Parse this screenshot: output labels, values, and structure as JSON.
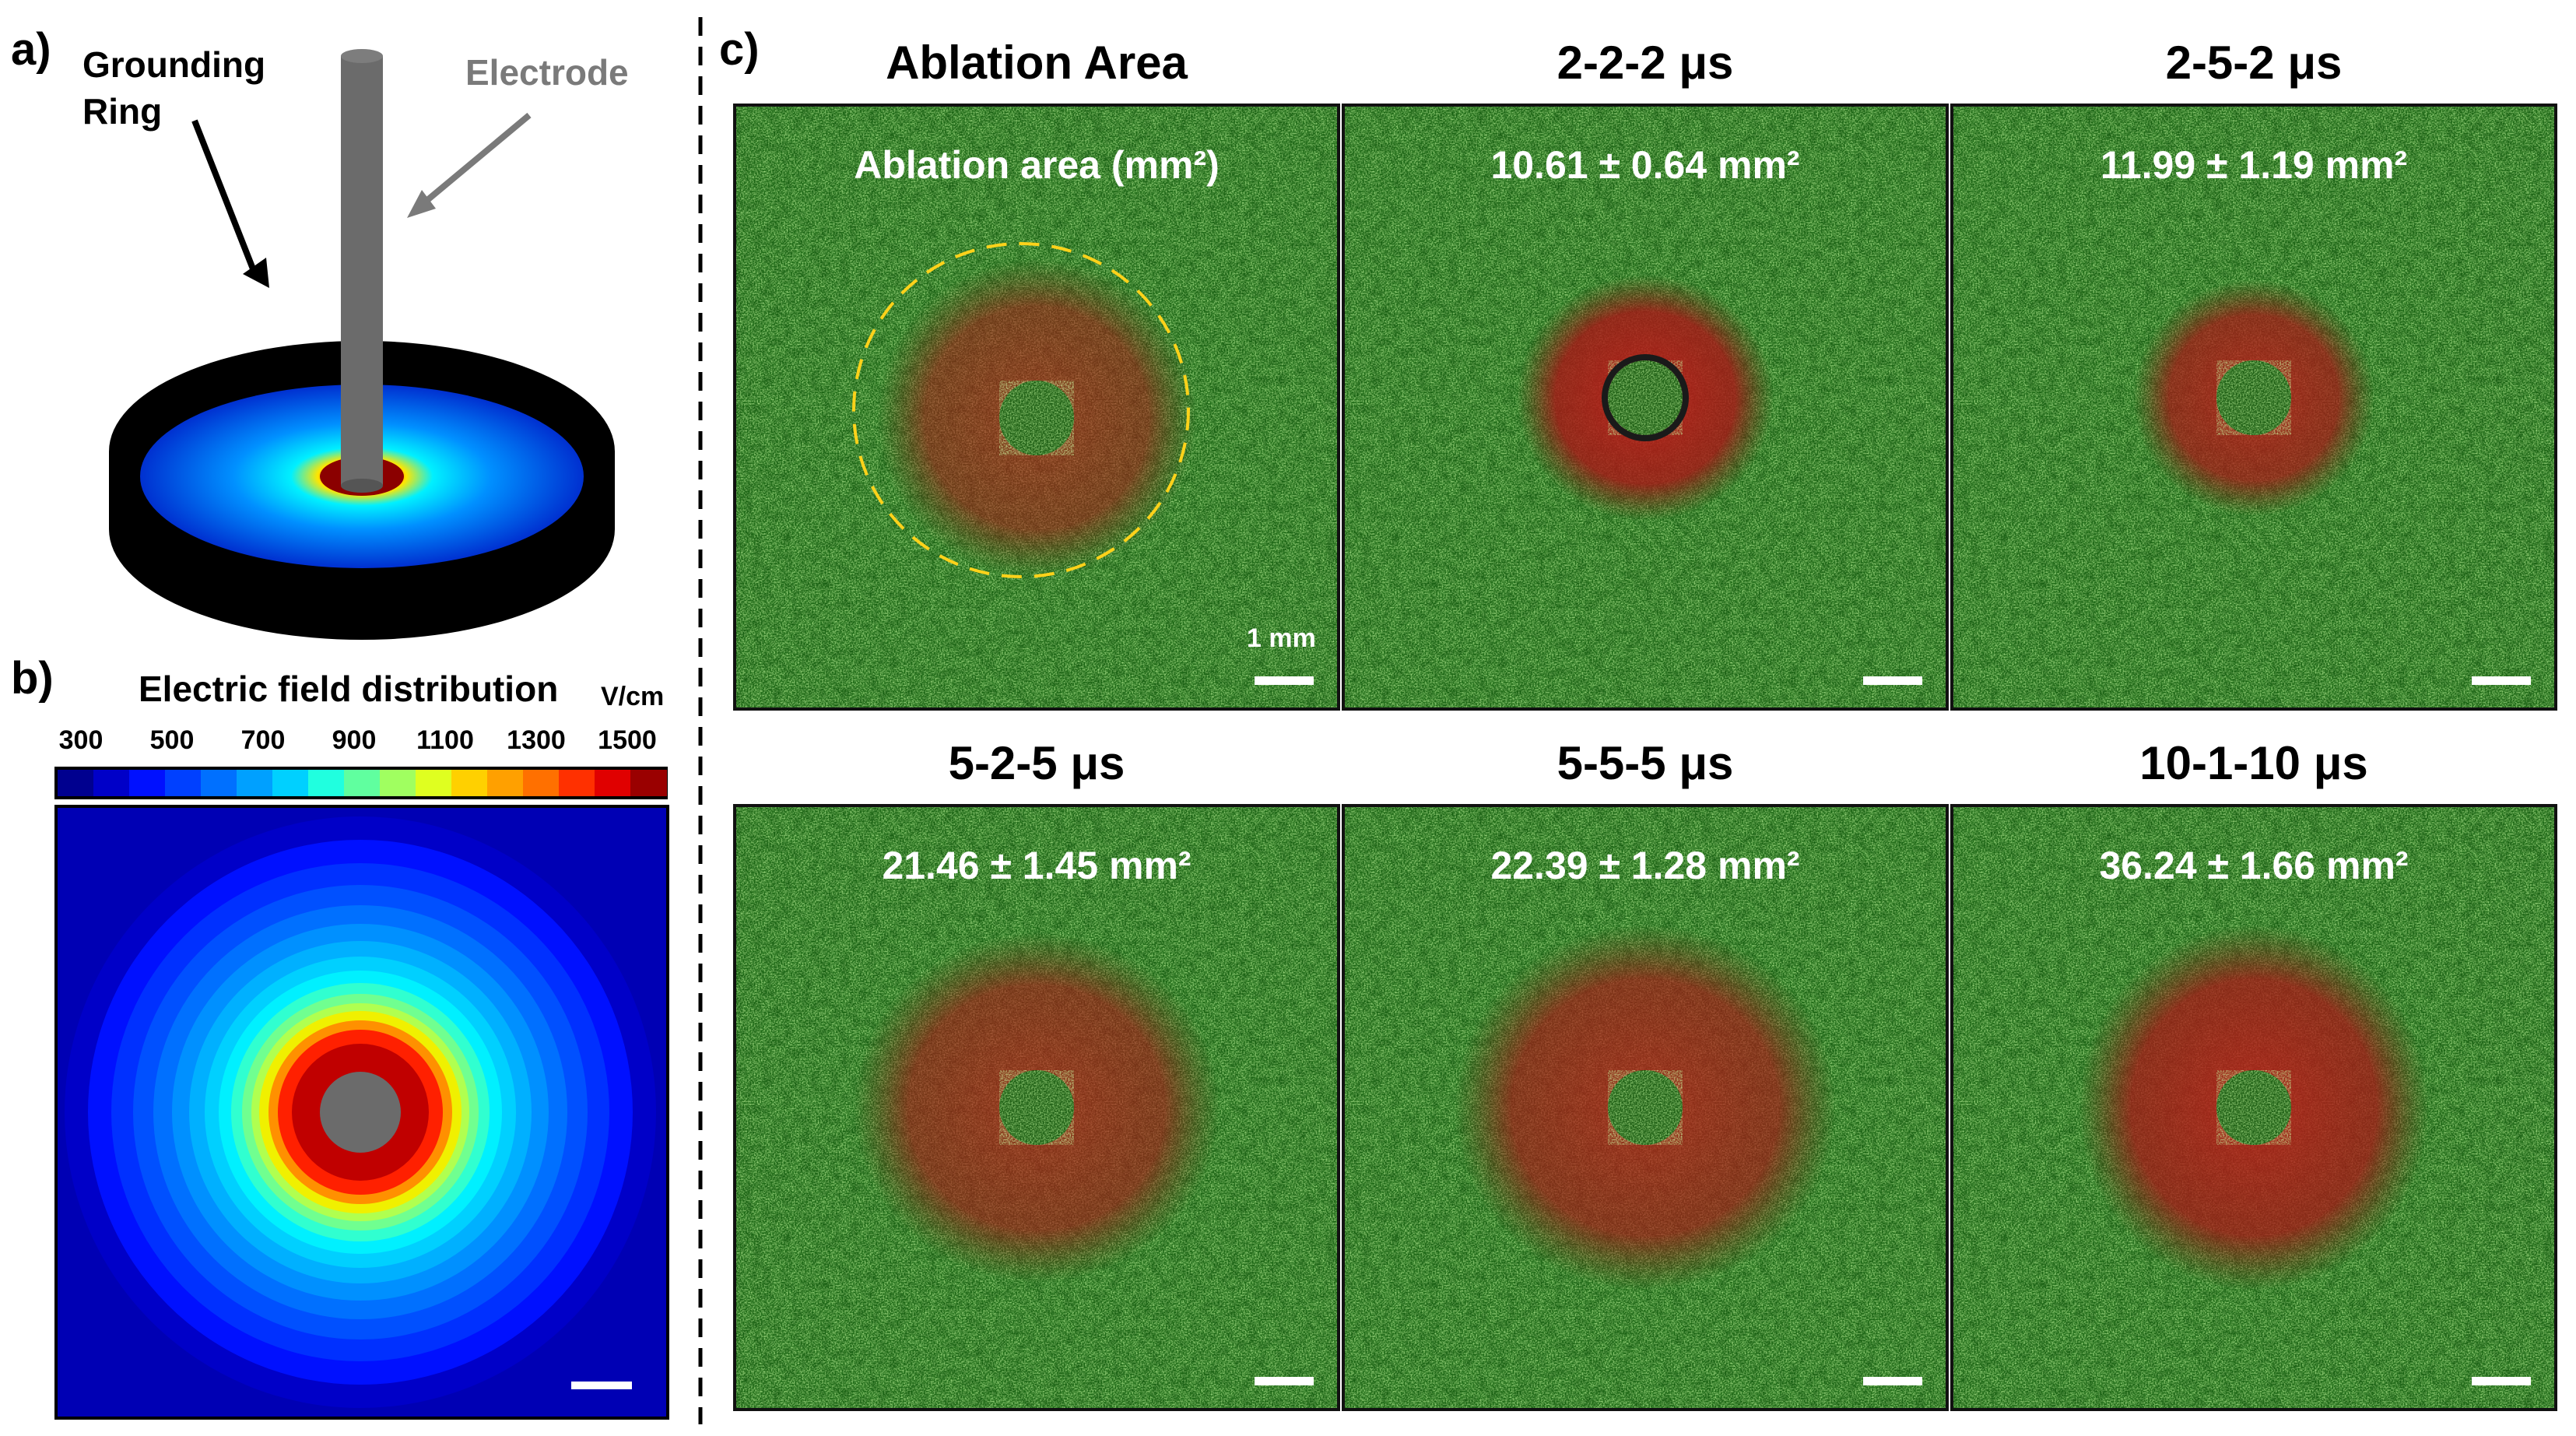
{
  "colors": {
    "tissue_green": "#2a8a1e",
    "ablation_red": "#b01818",
    "dashed_outline": "#ffd21a",
    "electrode_gray": "#6b6b6b",
    "ring_black": "#000000"
  },
  "panel_a": {
    "letter": "a)",
    "grounding_label_line1": "Grounding",
    "grounding_label_line2": "Ring",
    "electrode_label": "Electrode"
  },
  "panel_b": {
    "letter": "b)",
    "title": "Electric field distribution",
    "unit": "V/cm",
    "ticks": [
      "300",
      "500",
      "700",
      "900",
      "1100",
      "1300",
      "1500"
    ]
  },
  "panel_c": {
    "letter": "c)",
    "scale_label": "1 mm",
    "titles": [
      "Ablation Area",
      "2-2-2 μs",
      "2-5-2 μs",
      "5-2-5 μs",
      "5-5-5 μs",
      "10-1-10 μs"
    ],
    "labels": [
      "Ablation area (mm²)",
      "10.61 ± 0.64 mm²",
      "11.99 ± 1.19 mm²",
      "21.46 ± 1.45 mm²",
      "22.39 ± 1.28 mm²",
      "36.24 ± 1.66 mm²"
    ],
    "ablation_area_mm2": [
      10.61,
      11.99,
      21.46,
      22.39,
      36.24
    ],
    "ablation_area_sd_mm2": [
      0.64,
      1.19,
      1.45,
      1.28,
      1.66
    ]
  }
}
